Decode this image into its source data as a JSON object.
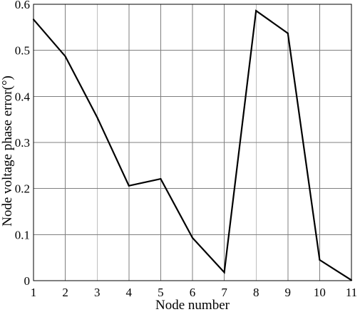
{
  "chart_data": {
    "type": "line",
    "title": "",
    "xlabel": "Node number",
    "ylabel": "Node voltage phase error(°)",
    "x": [
      1,
      2,
      3,
      4,
      5,
      6,
      7,
      8,
      9,
      10,
      11
    ],
    "series": [
      {
        "values": [
          0.567,
          0.487,
          0.355,
          0.206,
          0.221,
          0.093,
          0.018,
          0.586,
          0.537,
          0.045,
          0.001
        ]
      }
    ],
    "xlim": [
      1,
      11
    ],
    "ylim": [
      0,
      0.6
    ],
    "x_ticks": [
      1,
      2,
      3,
      4,
      5,
      6,
      7,
      8,
      9,
      10,
      11
    ],
    "x_tick_labels": [
      "1",
      "2",
      "3",
      "4",
      "5",
      "6",
      "7",
      "8",
      "9",
      "10",
      "11"
    ],
    "y_ticks": [
      0,
      0.1,
      0.2,
      0.3,
      0.4,
      0.5,
      0.6
    ],
    "y_tick_labels": [
      "0",
      "0.1",
      "0.2",
      "0.3",
      "0.4",
      "0.5",
      "0.6"
    ],
    "grid": true,
    "line_color": "#000000",
    "grid_color": "#7f7f7f"
  }
}
